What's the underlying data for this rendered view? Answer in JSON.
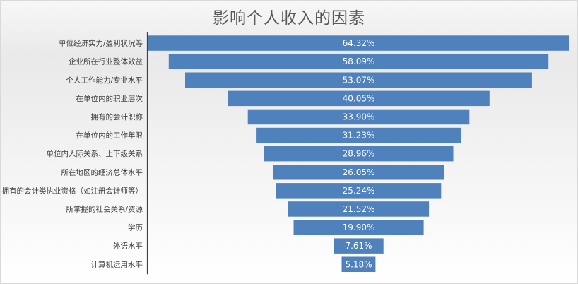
{
  "chart_data": {
    "type": "bar",
    "title": "影响个人收入的因素",
    "orientation": "horizontal",
    "style": "centered-funnel",
    "bar_color": "#4f81bd",
    "categories": [
      "单位经济实力/盈利状况等",
      "企业所在行业整体效益",
      "个人工作能力/专业水平",
      "在单位内的职业层次",
      "拥有的会计职称",
      "在单位内的工作年限",
      "单位内人际关系、上下级关系",
      "所在地区的经济总体水平",
      "拥有的会计类执业资格（如注册会计师等）",
      "所掌握的社会关系/资源",
      "学历",
      "外语水平",
      "计算机运用水平"
    ],
    "values": [
      64.32,
      58.09,
      53.07,
      40.05,
      33.9,
      31.23,
      28.96,
      26.05,
      25.24,
      21.52,
      19.9,
      7.61,
      5.18
    ],
    "value_labels": [
      "64.32%",
      "58.09%",
      "53.07%",
      "40.05%",
      "33.90%",
      "31.23%",
      "28.96%",
      "26.05%",
      "25.24%",
      "21.52%",
      "19.90%",
      "7.61%",
      "5.18%"
    ],
    "xlim": [
      0,
      64.32
    ]
  }
}
